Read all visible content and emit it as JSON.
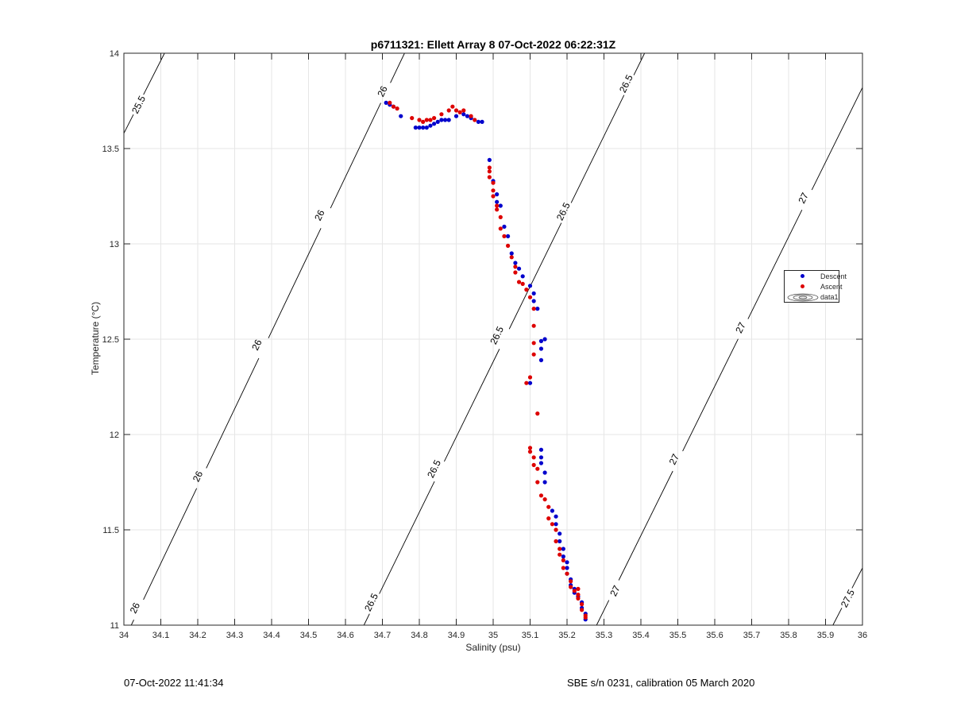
{
  "chart_data": {
    "type": "scatter",
    "title": "p6711321: Ellett Array 8 07-Oct-2022 06:22:31Z",
    "xlabel": "Salinity (psu)",
    "ylabel": "Temperature (°C)",
    "xlim": [
      34,
      36
    ],
    "ylim": [
      11,
      14
    ],
    "xticks": [
      "34",
      "34.1",
      "34.2",
      "34.3",
      "34.4",
      "34.5",
      "34.6",
      "34.7",
      "34.8",
      "34.9",
      "35",
      "35.1",
      "35.2",
      "35.3",
      "35.4",
      "35.5",
      "35.6",
      "35.7",
      "35.8",
      "35.9",
      "36"
    ],
    "yticks": [
      "11",
      "11.5",
      "12",
      "12.5",
      "13",
      "13.5",
      "14"
    ],
    "grid": true,
    "legend_position": "right",
    "legend": [
      "Descent",
      "Ascent",
      "data1"
    ],
    "colors": {
      "descent": "#0000cc",
      "ascent": "#dd0000",
      "contour": "#000000",
      "grid": "#e6e6e6"
    },
    "contours": [
      {
        "label": "25.5",
        "points": [
          [
            34.0,
            13.58
          ],
          [
            34.11,
            14.0
          ]
        ],
        "label_positions": [
          [
            34.04,
            13.73
          ]
        ]
      },
      {
        "label": "26",
        "points": [
          [
            34.02,
            11.0
          ],
          [
            34.76,
            14.0
          ]
        ],
        "label_positions": [
          [
            34.03,
            11.09
          ],
          [
            34.2,
            11.78
          ],
          [
            34.36,
            12.47
          ],
          [
            34.53,
            13.15
          ],
          [
            34.7,
            13.8
          ]
        ]
      },
      {
        "label": "26.5",
        "points": [
          [
            34.65,
            11.0
          ],
          [
            35.41,
            14.0
          ]
        ],
        "label_positions": [
          [
            34.67,
            11.12
          ],
          [
            34.84,
            11.82
          ],
          [
            35.01,
            12.52
          ],
          [
            35.19,
            13.17
          ],
          [
            35.36,
            13.84
          ]
        ]
      },
      {
        "label": "27",
        "points": [
          [
            35.28,
            11.0
          ],
          [
            36.0,
            13.82
          ]
        ],
        "label_positions": [
          [
            35.33,
            11.18
          ],
          [
            35.49,
            11.87
          ],
          [
            35.67,
            12.56
          ],
          [
            35.84,
            13.24
          ]
        ]
      },
      {
        "label": "27.5",
        "points": [
          [
            35.92,
            11.0
          ],
          [
            36.0,
            11.3
          ]
        ],
        "label_positions": [
          [
            35.96,
            11.14
          ]
        ]
      }
    ],
    "series": [
      {
        "name": "Descent",
        "points": [
          [
            34.71,
            13.74
          ],
          [
            34.72,
            13.73
          ],
          [
            34.73,
            13.72
          ],
          [
            34.75,
            13.67
          ],
          [
            34.79,
            13.61
          ],
          [
            34.8,
            13.61
          ],
          [
            34.81,
            13.61
          ],
          [
            34.82,
            13.61
          ],
          [
            34.83,
            13.62
          ],
          [
            34.84,
            13.63
          ],
          [
            34.85,
            13.64
          ],
          [
            34.86,
            13.65
          ],
          [
            34.87,
            13.65
          ],
          [
            34.88,
            13.65
          ],
          [
            34.9,
            13.67
          ],
          [
            34.92,
            13.68
          ],
          [
            34.93,
            13.67
          ],
          [
            34.94,
            13.66
          ],
          [
            34.96,
            13.64
          ],
          [
            34.97,
            13.64
          ],
          [
            34.99,
            13.44
          ],
          [
            35.0,
            13.33
          ],
          [
            35.01,
            13.26
          ],
          [
            35.01,
            13.22
          ],
          [
            35.02,
            13.2
          ],
          [
            35.03,
            13.09
          ],
          [
            35.04,
            13.04
          ],
          [
            35.05,
            12.95
          ],
          [
            35.06,
            12.9
          ],
          [
            35.07,
            12.87
          ],
          [
            35.08,
            12.83
          ],
          [
            35.1,
            12.78
          ],
          [
            35.11,
            12.74
          ],
          [
            35.11,
            12.7
          ],
          [
            35.12,
            12.66
          ],
          [
            35.13,
            12.49
          ],
          [
            35.14,
            12.5
          ],
          [
            35.13,
            12.45
          ],
          [
            35.13,
            12.39
          ],
          [
            35.1,
            12.27
          ],
          [
            35.13,
            11.92
          ],
          [
            35.13,
            11.88
          ],
          [
            35.13,
            11.85
          ],
          [
            35.14,
            11.8
          ],
          [
            35.14,
            11.75
          ],
          [
            35.16,
            11.6
          ],
          [
            35.17,
            11.57
          ],
          [
            35.17,
            11.53
          ],
          [
            35.18,
            11.48
          ],
          [
            35.18,
            11.44
          ],
          [
            35.19,
            11.4
          ],
          [
            35.19,
            11.36
          ],
          [
            35.2,
            11.33
          ],
          [
            35.2,
            11.3
          ],
          [
            35.2,
            11.27
          ],
          [
            35.21,
            11.24
          ],
          [
            35.21,
            11.21
          ],
          [
            35.22,
            11.19
          ],
          [
            35.22,
            11.17
          ],
          [
            35.23,
            11.15
          ],
          [
            35.24,
            11.12
          ],
          [
            35.24,
            11.09
          ],
          [
            35.25,
            11.06
          ],
          [
            35.25,
            11.03
          ]
        ]
      },
      {
        "name": "Ascent",
        "points": [
          [
            34.72,
            13.74
          ],
          [
            34.73,
            13.72
          ],
          [
            34.74,
            13.71
          ],
          [
            34.78,
            13.66
          ],
          [
            34.8,
            13.65
          ],
          [
            34.81,
            13.64
          ],
          [
            34.82,
            13.65
          ],
          [
            34.83,
            13.65
          ],
          [
            34.84,
            13.66
          ],
          [
            34.86,
            13.68
          ],
          [
            34.88,
            13.7
          ],
          [
            34.89,
            13.72
          ],
          [
            34.9,
            13.7
          ],
          [
            34.91,
            13.69
          ],
          [
            34.92,
            13.7
          ],
          [
            34.94,
            13.67
          ],
          [
            34.95,
            13.65
          ],
          [
            34.99,
            13.4
          ],
          [
            34.99,
            13.38
          ],
          [
            34.99,
            13.35
          ],
          [
            35.0,
            13.32
          ],
          [
            35.0,
            13.28
          ],
          [
            35.0,
            13.25
          ],
          [
            35.01,
            13.2
          ],
          [
            35.01,
            13.18
          ],
          [
            35.02,
            13.14
          ],
          [
            35.02,
            13.08
          ],
          [
            35.03,
            13.04
          ],
          [
            35.04,
            12.99
          ],
          [
            35.05,
            12.93
          ],
          [
            35.06,
            12.88
          ],
          [
            35.06,
            12.85
          ],
          [
            35.07,
            12.8
          ],
          [
            35.08,
            12.79
          ],
          [
            35.09,
            12.76
          ],
          [
            35.1,
            12.72
          ],
          [
            35.11,
            12.66
          ],
          [
            35.11,
            12.57
          ],
          [
            35.11,
            12.48
          ],
          [
            35.11,
            12.42
          ],
          [
            35.1,
            12.3
          ],
          [
            35.09,
            12.27
          ],
          [
            35.12,
            12.11
          ],
          [
            35.1,
            11.93
          ],
          [
            35.1,
            11.91
          ],
          [
            35.11,
            11.88
          ],
          [
            35.11,
            11.84
          ],
          [
            35.12,
            11.82
          ],
          [
            35.12,
            11.75
          ],
          [
            35.13,
            11.68
          ],
          [
            35.14,
            11.66
          ],
          [
            35.15,
            11.62
          ],
          [
            35.15,
            11.56
          ],
          [
            35.16,
            11.53
          ],
          [
            35.17,
            11.5
          ],
          [
            35.17,
            11.44
          ],
          [
            35.18,
            11.4
          ],
          [
            35.18,
            11.37
          ],
          [
            35.19,
            11.34
          ],
          [
            35.19,
            11.3
          ],
          [
            35.2,
            11.27
          ],
          [
            35.21,
            11.23
          ],
          [
            35.21,
            11.2
          ],
          [
            35.22,
            11.18
          ],
          [
            35.23,
            11.16
          ],
          [
            35.23,
            11.19
          ],
          [
            35.23,
            11.14
          ],
          [
            35.24,
            11.11
          ],
          [
            35.24,
            11.08
          ],
          [
            35.25,
            11.05
          ],
          [
            35.25,
            11.04
          ]
        ]
      }
    ]
  },
  "footer": {
    "left": "07-Oct-2022 11:41:34",
    "right": "SBE s/n 0231, calibration 05 March 2020"
  }
}
